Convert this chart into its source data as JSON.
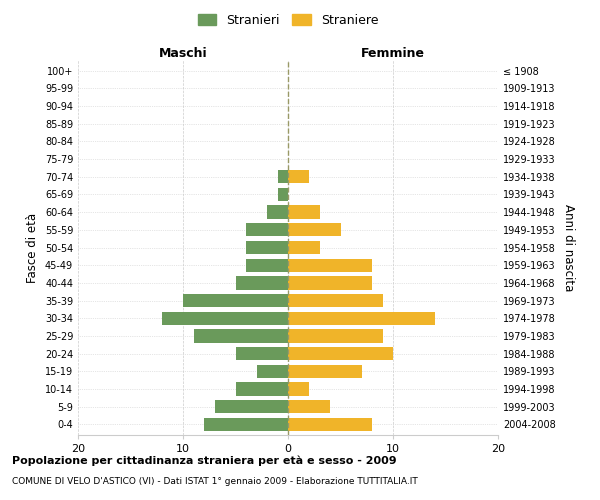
{
  "age_groups": [
    "0-4",
    "5-9",
    "10-14",
    "15-19",
    "20-24",
    "25-29",
    "30-34",
    "35-39",
    "40-44",
    "45-49",
    "50-54",
    "55-59",
    "60-64",
    "65-69",
    "70-74",
    "75-79",
    "80-84",
    "85-89",
    "90-94",
    "95-99",
    "100+"
  ],
  "birth_years": [
    "2004-2008",
    "1999-2003",
    "1994-1998",
    "1989-1993",
    "1984-1988",
    "1979-1983",
    "1974-1978",
    "1969-1973",
    "1964-1968",
    "1959-1963",
    "1954-1958",
    "1949-1953",
    "1944-1948",
    "1939-1943",
    "1934-1938",
    "1929-1933",
    "1924-1928",
    "1919-1923",
    "1914-1918",
    "1909-1913",
    "≤ 1908"
  ],
  "maschi": [
    8,
    7,
    5,
    3,
    5,
    9,
    12,
    10,
    5,
    4,
    4,
    4,
    2,
    1,
    1,
    0,
    0,
    0,
    0,
    0,
    0
  ],
  "femmine": [
    8,
    4,
    2,
    7,
    10,
    9,
    14,
    9,
    8,
    8,
    3,
    5,
    3,
    0,
    2,
    0,
    0,
    0,
    0,
    0,
    0
  ],
  "maschi_color": "#6a9a5b",
  "femmine_color": "#f0b429",
  "background_color": "#ffffff",
  "grid_color": "#cccccc",
  "bar_height": 0.75,
  "xlim": 20,
  "title": "Popolazione per cittadinanza straniera per età e sesso - 2009",
  "subtitle": "COMUNE DI VELO D'ASTICO (VI) - Dati ISTAT 1° gennaio 2009 - Elaborazione TUTTITALIA.IT",
  "left_header": "Maschi",
  "right_header": "Femmine",
  "left_yaxis_label": "Fasce di età",
  "right_yaxis_label": "Anni di nascita",
  "legend_stranieri": "Stranieri",
  "legend_straniere": "Straniere"
}
